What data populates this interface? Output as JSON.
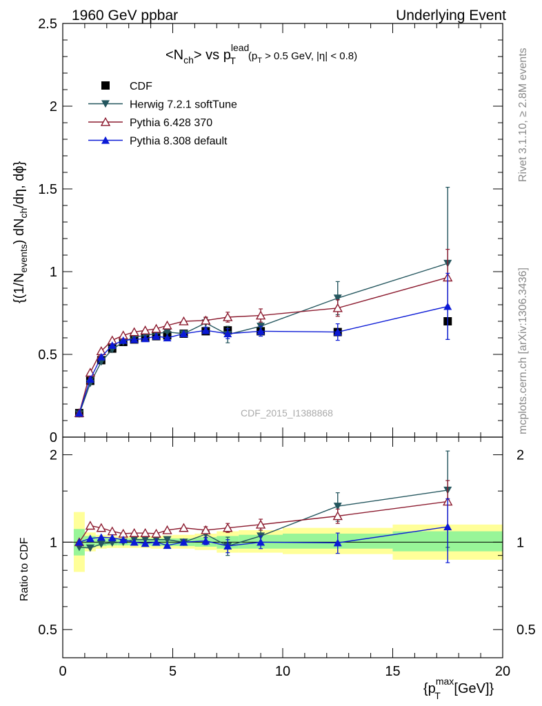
{
  "header": {
    "left": "1960 GeV ppbar",
    "right": "Underlying Event",
    "side_top": "Rivet 3.1.10, ≥ 2.8M events",
    "side_bottom": "mcplots.cern.ch [arXiv:1306.3436]",
    "watermark": "CDF_2015_I1388868"
  },
  "title": {
    "main": "<N",
    "main_sub": "ch",
    "main_mid": "> vs p",
    "main_sup": "lead",
    "main_sub2": "T",
    "cut_a": "(p",
    "cut_a_sub": "T",
    "cut_b": " > 0.5 GeV, |η| < 0.8)"
  },
  "axes": {
    "ylabel_top_a": "{(1/N",
    "ylabel_top_sub": "events",
    "ylabel_top_b": ") dN",
    "ylabel_top_sub2": "ch",
    "ylabel_top_c": "/dη, dϕ}",
    "ylabel_ratio": "Ratio to CDF",
    "xlabel_a": "{p",
    "xlabel_sup": "max",
    "xlabel_sub": "T",
    "xlabel_b": " [GeV]}"
  },
  "legend": {
    "items": [
      {
        "label": "CDF",
        "color": "#000000",
        "marker": "square"
      },
      {
        "label": "Herwig 7.2.1 softTune",
        "color": "#24565e",
        "marker": "triangle-down"
      },
      {
        "label": "Pythia 6.428 370",
        "color": "#8b1a2e",
        "marker": "triangle-up-open"
      },
      {
        "label": "Pythia 8.308 default",
        "color": "#0b1ad6",
        "marker": "triangle-up"
      }
    ]
  },
  "chart_data": [
    {
      "type": "scatter",
      "panel": "main",
      "xlim": [
        0,
        20
      ],
      "ylim": [
        0,
        2.5
      ],
      "xticks": [
        0,
        5,
        10,
        15,
        20
      ],
      "yticks": [
        0,
        0.5,
        1,
        1.5,
        2,
        2.5
      ],
      "ytick_labels": [
        "0",
        "0.5",
        "1",
        "1.5",
        "2",
        "2.5"
      ],
      "x": [
        0.75,
        1.25,
        1.75,
        2.25,
        2.75,
        3.25,
        3.75,
        4.25,
        4.75,
        5.5,
        6.5,
        7.5,
        9.0,
        12.5,
        17.5
      ],
      "series": [
        {
          "name": "CDF",
          "color": "#000000",
          "marker": "square",
          "values": [
            0.145,
            0.34,
            0.465,
            0.535,
            0.575,
            0.59,
            0.6,
            0.61,
            0.615,
            0.625,
            0.64,
            0.645,
            0.64,
            0.635,
            0.7
          ]
        },
        {
          "name": "Herwig 7.2.1 softTune",
          "color": "#24565e",
          "marker": "triangle-down",
          "values": [
            0.14,
            0.325,
            0.455,
            0.53,
            0.575,
            0.605,
            0.615,
            0.625,
            0.635,
            0.625,
            0.69,
            0.62,
            0.67,
            0.84,
            1.05
          ],
          "errors": [
            0.0,
            0.0,
            0.0,
            0.0,
            0.0,
            0.0,
            0.0,
            0.0,
            0.0,
            0.0,
            0.03,
            0.05,
            0.05,
            0.1,
            0.46
          ]
        },
        {
          "name": "Pythia 6.428 370",
          "color": "#8b1a2e",
          "marker": "triangle-up-open",
          "values": [
            0.145,
            0.39,
            0.52,
            0.585,
            0.615,
            0.635,
            0.645,
            0.655,
            0.675,
            0.7,
            0.705,
            0.725,
            0.735,
            0.78,
            0.965
          ],
          "errors": [
            0.0,
            0.0,
            0.0,
            0.0,
            0.0,
            0.0,
            0.0,
            0.0,
            0.0,
            0.0,
            0.02,
            0.03,
            0.04,
            0.05,
            0.17
          ]
        },
        {
          "name": "Pythia 8.308 default",
          "color": "#0b1ad6",
          "marker": "triangle-up",
          "values": [
            0.145,
            0.35,
            0.485,
            0.555,
            0.585,
            0.59,
            0.595,
            0.61,
            0.6,
            0.625,
            0.645,
            0.625,
            0.64,
            0.635,
            0.79
          ],
          "errors": [
            0.0,
            0.0,
            0.0,
            0.0,
            0.0,
            0.0,
            0.0,
            0.0,
            0.0,
            0.0,
            0.02,
            0.03,
            0.03,
            0.05,
            0.2
          ]
        }
      ]
    },
    {
      "type": "scatter",
      "panel": "ratio",
      "xlim": [
        0,
        20
      ],
      "ylim": [
        0.4,
        2.3
      ],
      "yscale": "log",
      "xticks": [
        0,
        5,
        10,
        15,
        20
      ],
      "xtick_labels": [
        "0",
        "5",
        "10",
        "15",
        "20"
      ],
      "yticks": [
        0.5,
        1,
        2
      ],
      "ytick_labels": [
        "0.5",
        "1",
        "2"
      ],
      "x": [
        0.75,
        1.25,
        1.75,
        2.25,
        2.75,
        3.25,
        3.75,
        4.25,
        4.75,
        5.5,
        6.5,
        7.5,
        9.0,
        12.5,
        17.5
      ],
      "bands": {
        "edges": [
          0.5,
          1.0,
          1.5,
          2.0,
          2.5,
          3.0,
          3.5,
          4.0,
          4.5,
          5.0,
          6.0,
          7.0,
          8.0,
          10.0,
          15.0,
          20.0
        ],
        "inner": [
          [
            0.9,
            1.11
          ],
          [
            0.96,
            1.05
          ],
          [
            0.97,
            1.04
          ],
          [
            0.975,
            1.03
          ],
          [
            0.975,
            1.03
          ],
          [
            0.975,
            1.03
          ],
          [
            0.975,
            1.03
          ],
          [
            0.97,
            1.03
          ],
          [
            0.97,
            1.03
          ],
          [
            0.97,
            1.03
          ],
          [
            0.965,
            1.04
          ],
          [
            0.95,
            1.05
          ],
          [
            0.95,
            1.06
          ],
          [
            0.95,
            1.07
          ],
          [
            0.93,
            1.09
          ]
        ],
        "outer": [
          [
            0.79,
            1.27
          ],
          [
            0.93,
            1.08
          ],
          [
            0.95,
            1.06
          ],
          [
            0.955,
            1.05
          ],
          [
            0.955,
            1.05
          ],
          [
            0.955,
            1.05
          ],
          [
            0.955,
            1.05
          ],
          [
            0.95,
            1.05
          ],
          [
            0.95,
            1.055
          ],
          [
            0.95,
            1.06
          ],
          [
            0.94,
            1.07
          ],
          [
            0.92,
            1.09
          ],
          [
            0.92,
            1.1
          ],
          [
            0.91,
            1.12
          ],
          [
            0.87,
            1.15
          ]
        ]
      },
      "series": [
        {
          "name": "Herwig 7.2.1 softTune",
          "color": "#24565e",
          "marker": "triangle-down",
          "values": [
            0.96,
            0.955,
            0.985,
            0.995,
            1.0,
            1.02,
            1.02,
            1.02,
            1.02,
            1.0,
            1.065,
            0.97,
            1.05,
            1.33,
            1.51
          ],
          "errors": [
            0.0,
            0.0,
            0.0,
            0.0,
            0.0,
            0.0,
            0.0,
            0.0,
            0.0,
            0.0,
            0.03,
            0.07,
            0.07,
            0.15,
            0.55
          ]
        },
        {
          "name": "Pythia 6.428 370",
          "color": "#8b1a2e",
          "marker": "triangle-up-open",
          "values": [
            1.0,
            1.14,
            1.12,
            1.09,
            1.07,
            1.075,
            1.075,
            1.07,
            1.1,
            1.12,
            1.1,
            1.12,
            1.15,
            1.23,
            1.38
          ],
          "errors": [
            0.0,
            0.0,
            0.0,
            0.0,
            0.0,
            0.0,
            0.0,
            0.0,
            0.0,
            0.0,
            0.03,
            0.04,
            0.05,
            0.07,
            0.25
          ]
        },
        {
          "name": "Pythia 8.308 default",
          "color": "#0b1ad6",
          "marker": "triangle-up",
          "values": [
            1.0,
            1.03,
            1.04,
            1.035,
            1.02,
            1.0,
            0.99,
            1.0,
            0.975,
            1.0,
            1.01,
            0.97,
            1.0,
            0.995,
            1.13
          ],
          "errors": [
            0.0,
            0.0,
            0.0,
            0.0,
            0.0,
            0.0,
            0.0,
            0.0,
            0.0,
            0.0,
            0.03,
            0.05,
            0.05,
            0.08,
            0.28
          ]
        }
      ]
    }
  ]
}
